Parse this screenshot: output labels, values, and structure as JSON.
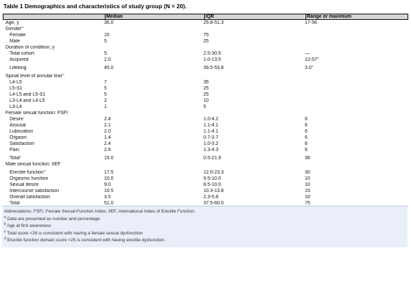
{
  "title": "Table 1 Demographics and characteristics of study group (N = 20).",
  "table": {
    "columns": [
      "",
      "Median",
      "IQR",
      "Range or maximum"
    ],
    "rows": [
      {
        "label": "Age, y",
        "sup": "",
        "indent": 0,
        "median": "36.0",
        "iqr": "25.8-51.3",
        "range": "17-56",
        "range_sup": "",
        "gap": false
      },
      {
        "label": "Gender",
        "sup": "a",
        "indent": 0,
        "median": "",
        "iqr": "",
        "range": "",
        "range_sup": "",
        "gap": false
      },
      {
        "label": "Female",
        "sup": "",
        "indent": 1,
        "median": "15",
        "iqr": "75",
        "range": "",
        "range_sup": "",
        "gap": false
      },
      {
        "label": "Male",
        "sup": "",
        "indent": 1,
        "median": "5",
        "iqr": "25",
        "range": "",
        "range_sup": "",
        "gap": false
      },
      {
        "label": "Duration of condition, y",
        "sup": "",
        "indent": 0,
        "median": "",
        "iqr": "",
        "range": "",
        "range_sup": "",
        "gap": false
      },
      {
        "label": "Total cohort",
        "sup": "",
        "indent": 1,
        "median": "5",
        "iqr": "2.5-30.5",
        "range": "—",
        "range_sup": "",
        "gap": false
      },
      {
        "label": "Acquired",
        "sup": "",
        "indent": 1,
        "median": "2.0",
        "iqr": "1.0-13.5",
        "range": "12-57",
        "range_sup": "b",
        "gap": false
      },
      {
        "label": "Lifelong",
        "sup": "",
        "indent": 1,
        "median": "45.0",
        "iqr": "39.5-53.8",
        "range": "3.0",
        "range_sup": "b",
        "gap": true
      },
      {
        "label": "Spinal level of annular tear",
        "sup": "a",
        "indent": 0,
        "median": "",
        "iqr": "",
        "range": "",
        "range_sup": "",
        "gap": true
      },
      {
        "label": "L4-L5",
        "sup": "",
        "indent": 1,
        "median": "7",
        "iqr": "35",
        "range": "",
        "range_sup": "",
        "gap": false
      },
      {
        "label": "L5-S1",
        "sup": "",
        "indent": 1,
        "median": "5",
        "iqr": "25",
        "range": "",
        "range_sup": "",
        "gap": false
      },
      {
        "label": "L4-L5 and L5-S1",
        "sup": "",
        "indent": 1,
        "median": "5",
        "iqr": "25",
        "range": "",
        "range_sup": "",
        "gap": false
      },
      {
        "label": "L3-L4 and L4-L5",
        "sup": "",
        "indent": 1,
        "median": "2",
        "iqr": "10",
        "range": "",
        "range_sup": "",
        "gap": false
      },
      {
        "label": "L3-L4",
        "sup": "",
        "indent": 1,
        "median": "1",
        "iqr": "5",
        "range": "",
        "range_sup": "",
        "gap": false
      },
      {
        "label": "Female sexual function: FSFI",
        "sup": "",
        "indent": 0,
        "median": "",
        "iqr": "",
        "range": "",
        "range_sup": "",
        "gap": false
      },
      {
        "label": "Desire",
        "sup": "",
        "indent": 1,
        "median": "2.4",
        "iqr": "1.0-4.2",
        "range": "6",
        "range_sup": "",
        "gap": false
      },
      {
        "label": "Arousal",
        "sup": "",
        "indent": 1,
        "median": "2.1",
        "iqr": "1.1-4.1",
        "range": "6",
        "range_sup": "",
        "gap": false
      },
      {
        "label": "Lubrication",
        "sup": "",
        "indent": 1,
        "median": "2.0",
        "iqr": "1.1-4.1",
        "range": "6",
        "range_sup": "",
        "gap": false
      },
      {
        "label": "Orgasm",
        "sup": "",
        "indent": 1,
        "median": "1.4",
        "iqr": "0.7-3.7",
        "range": "6",
        "range_sup": "",
        "gap": false
      },
      {
        "label": "Satisfaction",
        "sup": "",
        "indent": 1,
        "median": "2.4",
        "iqr": "1.0-3.2",
        "range": "6",
        "range_sup": "",
        "gap": false
      },
      {
        "label": "Pain",
        "sup": "",
        "indent": 1,
        "median": "2.6",
        "iqr": "1.3-4.3",
        "range": "6",
        "range_sup": "",
        "gap": false
      },
      {
        "label": "Total",
        "sup": "c",
        "indent": 1,
        "median": "15.0",
        "iqr": "0.5-21.9",
        "range": "36",
        "range_sup": "",
        "gap": true
      },
      {
        "label": "Male sexual function: IIEF",
        "sup": "",
        "indent": 0,
        "median": "",
        "iqr": "",
        "range": "",
        "range_sup": "",
        "gap": false
      },
      {
        "label": "Erectile function",
        "sup": "d",
        "indent": 1,
        "median": "17.5",
        "iqr": "12.0-23.3",
        "range": "30",
        "range_sup": "",
        "gap": true
      },
      {
        "label": "Orgasmic function",
        "sup": "",
        "indent": 1,
        "median": "10.0",
        "iqr": "9.5-10.0",
        "range": "10",
        "range_sup": "",
        "gap": false
      },
      {
        "label": "Sexual desire",
        "sup": "",
        "indent": 1,
        "median": "9.0",
        "iqr": "8.5-10.0",
        "range": "10",
        "range_sup": "",
        "gap": false
      },
      {
        "label": "Intercourse satisfaction",
        "sup": "",
        "indent": 1,
        "median": "10.5",
        "iqr": "10.3-13.8",
        "range": "15",
        "range_sup": "",
        "gap": false
      },
      {
        "label": "Overall satisfaction",
        "sup": "",
        "indent": 1,
        "median": "3.5",
        "iqr": "2.3-5.8",
        "range": "10",
        "range_sup": "",
        "gap": false
      },
      {
        "label": "Total",
        "sup": "",
        "indent": 1,
        "median": "51.0",
        "iqr": "37.5-60.0",
        "range": "75",
        "range_sup": "",
        "gap": false
      }
    ]
  },
  "footnotes": [
    {
      "marker": "",
      "text": "Abbreviations: FSFI, Female Sexual Function Index; IIEF, International Index of Erectile Function"
    },
    {
      "marker": "a",
      "text": "Data are presented as number and percentage"
    },
    {
      "marker": "b",
      "text": "Age at first awareness"
    },
    {
      "marker": "c",
      "text": "Total score <26 is consistent with having a female sexual dysfunction"
    },
    {
      "marker": "d",
      "text": "Erectile function domain score <25 is consistent with having erectile dysfunction."
    }
  ],
  "colors": {
    "header_bg": "#d6d6d6",
    "footnote_bg": "#e9eef9",
    "border": "#000000"
  }
}
